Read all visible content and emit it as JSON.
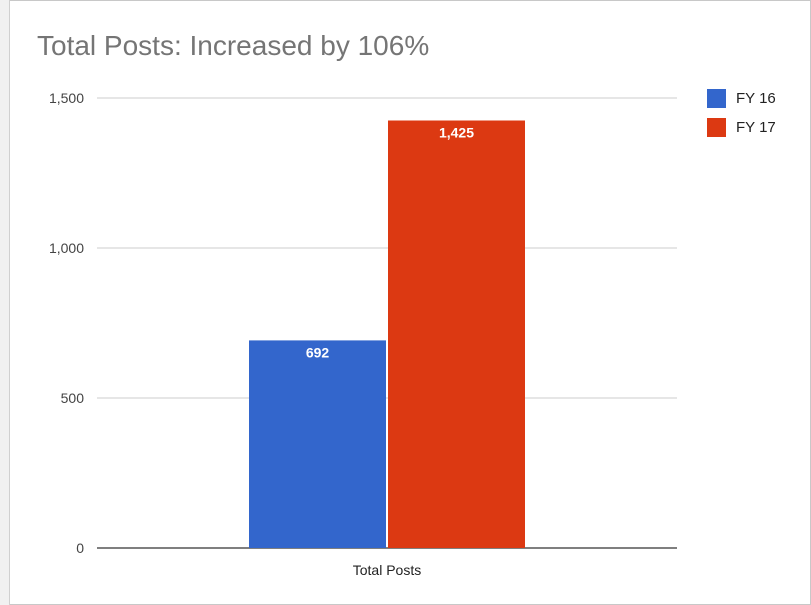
{
  "chart_data": {
    "type": "bar",
    "title": "Total Posts: Increased by 106%",
    "categories": [
      "Total Posts"
    ],
    "series": [
      {
        "name": "FY 16",
        "values": [
          692
        ],
        "value_labels": [
          "692"
        ],
        "color": "#3366cc"
      },
      {
        "name": "FY 17",
        "values": [
          1425
        ],
        "value_labels": [
          "1,425"
        ],
        "color": "#dc3912"
      }
    ],
    "ylim": [
      0,
      1500
    ],
    "yticks": [
      0,
      500,
      1000,
      1500
    ],
    "ytick_labels": [
      "0",
      "500",
      "1,000",
      "1,500"
    ],
    "grid": true,
    "legend_position": "right",
    "xlabel": "",
    "ylabel": ""
  }
}
